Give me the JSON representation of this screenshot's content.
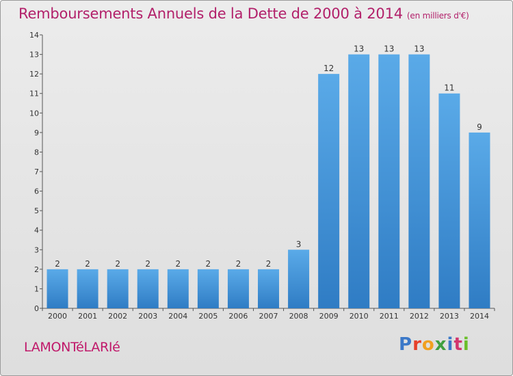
{
  "header": {
    "title": "Remboursements Annuels de la Dette de 2000 à 2014",
    "subtitle": "(en milliers d'€)"
  },
  "footer": {
    "commune": "LAMONTéLARIé",
    "brand": {
      "letters": [
        "P",
        "r",
        "o",
        "x",
        "i",
        "t",
        "i"
      ],
      "colors": [
        "#3b78c8",
        "#e6402a",
        "#f0a020",
        "#3f9f3f",
        "#3b78c8",
        "#d2356e",
        "#6bbf2a"
      ]
    }
  },
  "chart_data": {
    "type": "bar",
    "categories": [
      "2000",
      "2001",
      "2002",
      "2003",
      "2004",
      "2005",
      "2006",
      "2007",
      "2008",
      "2009",
      "2010",
      "2011",
      "2012",
      "2013",
      "2014"
    ],
    "values": [
      2,
      2,
      2,
      2,
      2,
      2,
      2,
      2,
      3,
      12,
      13,
      13,
      13,
      11,
      9
    ],
    "data_labels": [
      "2",
      "2",
      "2",
      "2",
      "2",
      "2",
      "2",
      "2",
      "3",
      "12",
      "13",
      "13",
      "13",
      "11",
      "9"
    ],
    "y_ticks": [
      0,
      1,
      2,
      3,
      4,
      5,
      6,
      7,
      8,
      9,
      10,
      11,
      12,
      13,
      14
    ],
    "ylim": [
      0,
      14
    ],
    "title": "Remboursements Annuels de la Dette de 2000 à 2014",
    "xlabel": "",
    "ylabel": "",
    "grid": false,
    "bar_color": "#3c8ed8"
  }
}
